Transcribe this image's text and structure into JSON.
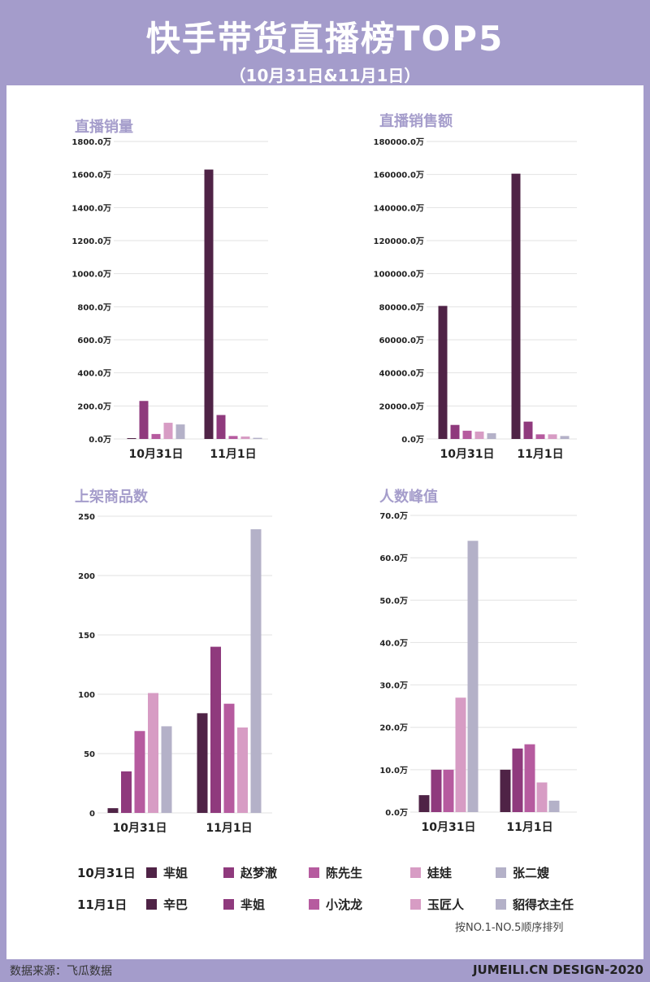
{
  "header": {
    "title": "快手带货直播榜TOP5",
    "subtitle": "（10月31日&11月1日）"
  },
  "colors": [
    "#4f2346",
    "#8f3a7d",
    "#b65b9f",
    "#d79cc4",
    "#b4b1c8"
  ],
  "chart_data": [
    {
      "type": "bar",
      "title": "直播销量",
      "categories": [
        "10月31日",
        "11月1日"
      ],
      "ylim": [
        0,
        1800
      ],
      "ticks": [
        "0.0万",
        "200.0万",
        "400.0万",
        "600.0万",
        "800.0万",
        "1000.0万",
        "1200.0万",
        "1400.0万",
        "1600.0万",
        "1800.0万"
      ],
      "unit": "万",
      "series": [
        {
          "values": [
            5,
            1630
          ]
        },
        {
          "values": [
            230,
            145
          ]
        },
        {
          "values": [
            30,
            18
          ]
        },
        {
          "values": [
            98,
            15
          ]
        },
        {
          "values": [
            88,
            7
          ]
        }
      ]
    },
    {
      "type": "bar",
      "title": "直播销售额",
      "categories": [
        "10月31日",
        "11月1日"
      ],
      "ylim": [
        0,
        180000
      ],
      "ticks": [
        "0.0万",
        "20000.0万",
        "40000.0万",
        "60000.0万",
        "80000.0万",
        "100000.0万",
        "120000.0万",
        "140000.0万",
        "160000.0万",
        "180000.0万"
      ],
      "unit": "万",
      "series": [
        {
          "values": [
            80500,
            160500
          ]
        },
        {
          "values": [
            8500,
            10500
          ]
        },
        {
          "values": [
            5000,
            2800
          ]
        },
        {
          "values": [
            4500,
            2800
          ]
        },
        {
          "values": [
            3500,
            1800
          ]
        }
      ]
    },
    {
      "type": "bar",
      "title": "上架商品数",
      "categories": [
        "10月31日",
        "11月1日"
      ],
      "ylim": [
        0,
        250
      ],
      "ticks": [
        "0",
        "50",
        "100",
        "150",
        "200",
        "250"
      ],
      "series": [
        {
          "values": [
            4,
            84
          ]
        },
        {
          "values": [
            35,
            140
          ]
        },
        {
          "values": [
            69,
            92
          ]
        },
        {
          "values": [
            101,
            72
          ]
        },
        {
          "values": [
            73,
            239
          ]
        }
      ]
    },
    {
      "type": "bar",
      "title": "人数峰值",
      "categories": [
        "10月31日",
        "11月1日"
      ],
      "ylim": [
        0,
        70
      ],
      "ticks": [
        "0.0万",
        "10.0万",
        "20.0万",
        "30.0万",
        "40.0万",
        "50.0万",
        "60.0万",
        "70.0万"
      ],
      "unit": "万",
      "series": [
        {
          "values": [
            4,
            10
          ]
        },
        {
          "values": [
            10,
            15
          ]
        },
        {
          "values": [
            10,
            16
          ]
        },
        {
          "values": [
            27,
            7
          ]
        },
        {
          "values": [
            64,
            2.7
          ]
        }
      ]
    }
  ],
  "legend": [
    {
      "date": "10月31日",
      "names": [
        "芈姐",
        "赵梦澈",
        "陈先生",
        "娃娃",
        "张二嫂"
      ]
    },
    {
      "date": "11月1日",
      "names": [
        "辛巴",
        "芈姐",
        "小沈龙",
        "玉匠人",
        "貂得衣主任"
      ]
    }
  ],
  "note": "按NO.1-NO.5顺序排列",
  "footer": {
    "source": "数据来源：飞瓜数据",
    "brand": "JUMEILI.CN DESIGN-2020"
  }
}
